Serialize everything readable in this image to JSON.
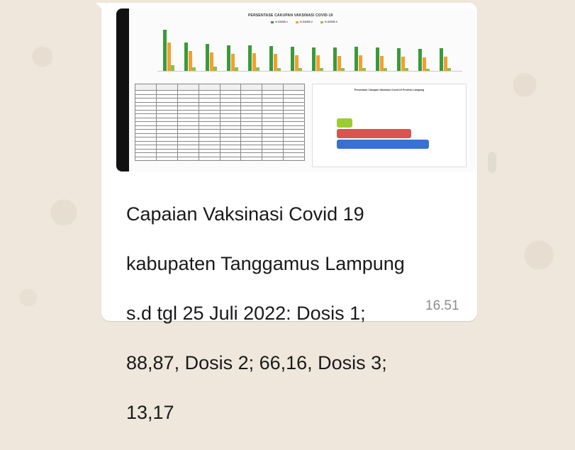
{
  "message": {
    "caption_lines": [
      "Capaian Vaksinasi Covid 19",
      "kabupaten Tanggamus Lampung",
      "s.d tgl 25 Juli 2022: Dosis 1;",
      "88,87, Dosis  2; 66,16, Dosis 3;",
      "13,17"
    ],
    "time": "16.51"
  },
  "image_preview": {
    "title": "PERSENTASE CAKUPAN VAKSINASI COVID-19",
    "legend": [
      "% DOSIS 1",
      "% DOSIS 2",
      "% DOSIS 3"
    ],
    "panel_title": "Persentase Cakupan Vaksinasi Covid-19 Provinsi Lampung",
    "colors": {
      "dose1": "#3a9a3a",
      "dose2": "#f0a030",
      "dose3": "#8fbf4f",
      "hbar_green": "#9acd32",
      "hbar_red": "#d9534f",
      "hbar_blue": "#3a6fd8"
    }
  }
}
